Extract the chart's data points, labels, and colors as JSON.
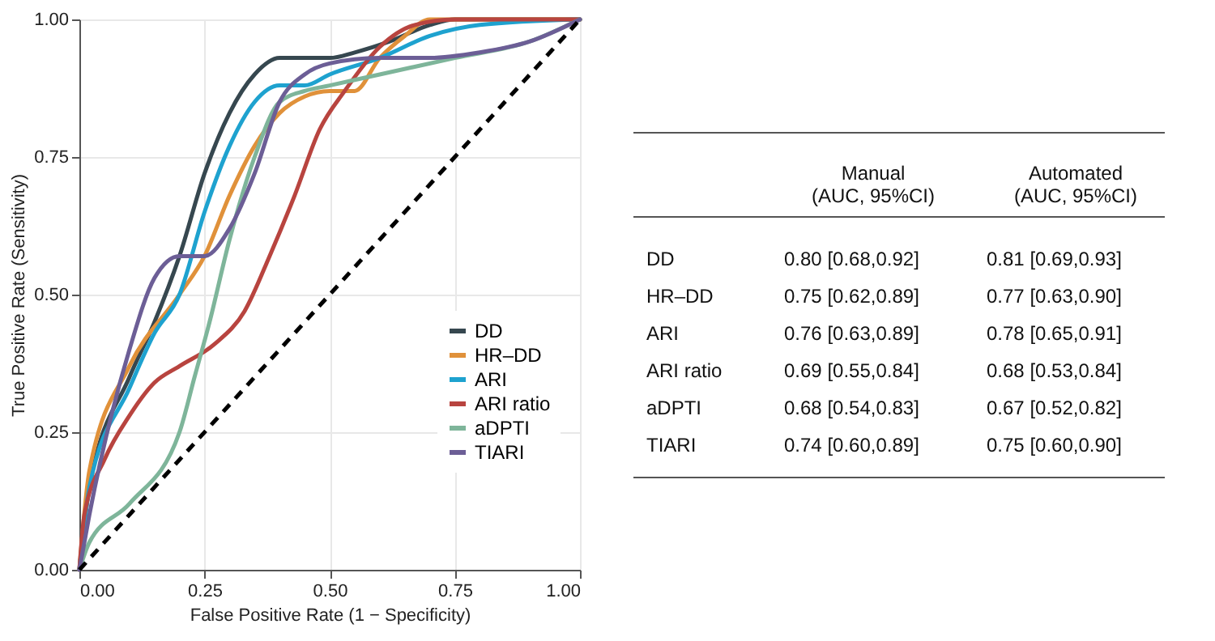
{
  "chart_data": [
    {
      "type": "line",
      "xlabel": "False Positive Rate (1 − Specificity)",
      "ylabel": "True Positive Rate (Sensitivity)",
      "xlim": [
        0,
        1
      ],
      "ylim": [
        0,
        1
      ],
      "xticks": [
        {
          "value": 0,
          "label": "0.00"
        },
        {
          "value": 0.25,
          "label": "0.25"
        },
        {
          "value": 0.5,
          "label": "0.50"
        },
        {
          "value": 0.75,
          "label": "0.75"
        },
        {
          "value": 1,
          "label": "1.00"
        }
      ],
      "yticks": [
        {
          "value": 0,
          "label": "0.00"
        },
        {
          "value": 0.25,
          "label": "0.25"
        },
        {
          "value": 0.5,
          "label": "0.50"
        },
        {
          "value": 0.75,
          "label": "0.75"
        },
        {
          "value": 1,
          "label": "1.00"
        }
      ],
      "grid": true,
      "legend": "bottom right",
      "marker": "none",
      "series": [
        {
          "name": "DD",
          "color": "#36474f",
          "x": [
            0,
            0.02,
            0.1,
            0.15,
            0.2,
            0.25,
            0.3,
            0.35,
            0.4,
            0.5,
            0.55,
            0.62,
            0.7,
            0.75,
            1
          ],
          "values": [
            0,
            0.15,
            0.35,
            0.45,
            0.57,
            0.72,
            0.83,
            0.9,
            0.93,
            0.93,
            0.94,
            0.96,
            0.99,
            1,
            1
          ]
        },
        {
          "name": "HR–DD",
          "color": "#e0913a",
          "x": [
            0,
            0.02,
            0.1,
            0.2,
            0.25,
            0.3,
            0.35,
            0.4,
            0.45,
            0.5,
            0.55,
            0.6,
            0.65,
            0.7,
            1
          ],
          "values": [
            0,
            0.18,
            0.37,
            0.5,
            0.57,
            0.68,
            0.77,
            0.83,
            0.86,
            0.87,
            0.87,
            0.93,
            0.97,
            1,
            1
          ]
        },
        {
          "name": "ARI",
          "color": "#1ea2cf",
          "x": [
            0,
            0.02,
            0.1,
            0.15,
            0.2,
            0.25,
            0.3,
            0.35,
            0.4,
            0.45,
            0.5,
            0.6,
            0.7,
            0.8,
            1
          ],
          "values": [
            0,
            0.15,
            0.33,
            0.43,
            0.5,
            0.65,
            0.77,
            0.85,
            0.88,
            0.88,
            0.9,
            0.93,
            0.97,
            0.99,
            1
          ]
        },
        {
          "name": "ARI ratio",
          "color": "#b8443f",
          "x": [
            0,
            0.01,
            0.05,
            0.1,
            0.15,
            0.2,
            0.27,
            0.33,
            0.38,
            0.43,
            0.48,
            0.53,
            0.6,
            0.67,
            0.75,
            1
          ],
          "values": [
            0,
            0.1,
            0.2,
            0.28,
            0.34,
            0.37,
            0.41,
            0.47,
            0.57,
            0.68,
            0.8,
            0.87,
            0.95,
            0.99,
            1,
            1
          ]
        },
        {
          "name": "aDPTI",
          "color": "#7eb59a",
          "x": [
            0,
            0.02,
            0.1,
            0.2,
            0.23,
            0.26,
            0.3,
            0.35,
            0.4,
            0.45,
            0.5,
            0.6,
            0.75,
            0.9,
            1
          ],
          "values": [
            0,
            0.05,
            0.12,
            0.25,
            0.35,
            0.45,
            0.6,
            0.75,
            0.85,
            0.87,
            0.88,
            0.9,
            0.93,
            0.96,
            1
          ]
        },
        {
          "name": "TIARI",
          "color": "#6c5e96",
          "x": [
            0,
            0.02,
            0.1,
            0.15,
            0.2,
            0.25,
            0.3,
            0.35,
            0.4,
            0.45,
            0.5,
            0.6,
            0.7,
            0.8,
            0.9,
            1
          ],
          "values": [
            0,
            0.1,
            0.4,
            0.53,
            0.57,
            0.57,
            0.62,
            0.72,
            0.85,
            0.9,
            0.92,
            0.93,
            0.93,
            0.94,
            0.96,
            1
          ]
        },
        {
          "color": "#000000",
          "line_style": "dashed",
          "x": [
            0,
            1
          ],
          "values": [
            0,
            1
          ]
        }
      ]
    },
    {
      "type": "other",
      "annotations": [
        "Manual\n(AUC, 95%CI)",
        "Automated\n(AUC, 95%CI)",
        "DD",
        "0.80 [0.68,0.92]",
        "0.81 [0.69,0.93]",
        "HR–DD",
        "0.75 [0.62,0.89]",
        "0.77 [0.63,0.90]",
        "ARI",
        "0.76 [0.63,0.89]",
        "0.78 [0.65,0.91]",
        "ARI ratio",
        "0.69 [0.55,0.84]",
        "0.68 [0.53,0.84]",
        "aDPTI",
        "0.68 [0.54,0.83]",
        "0.67 [0.52,0.82]",
        "TIARI",
        "0.74 [0.60,0.89]",
        "0.75 [0.60,0.90]"
      ]
    }
  ]
}
